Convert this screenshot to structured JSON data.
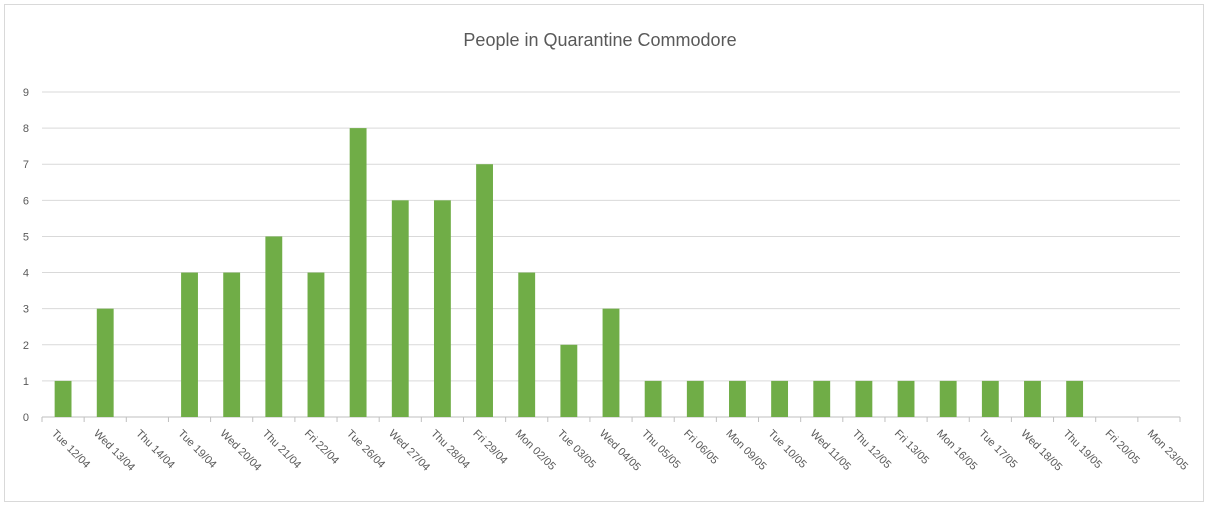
{
  "chart_data": {
    "type": "bar",
    "title": "People in Quarantine Commodore",
    "xlabel": "",
    "ylabel": "",
    "ylim": [
      0,
      9
    ],
    "yticks": [
      0,
      1,
      2,
      3,
      4,
      5,
      6,
      7,
      8,
      9
    ],
    "grid": true,
    "legend": "none",
    "bar_color": "#70ad47",
    "categories": [
      "Tue 12/04",
      "Wed 13/04",
      "Thu 14/04",
      "Tue 19/04",
      "Wed 20/04",
      "Thu 21/04",
      "Fri 22/04",
      "Tue 26/04",
      "Wed 27/04",
      "Thu 28/04",
      "Fri 29/04",
      "Mon 02/05",
      "Tue 03/05",
      "Wed 04/05",
      "Thu 05/05",
      "Fri 06/05",
      "Mon 09/05",
      "Tue 10/05",
      "Wed 11/05",
      "Thu 12/05",
      "Fri 13/05",
      "Mon 16/05",
      "Tue 17/05",
      "Wed 18/05",
      "Thu 19/05",
      "Fri 20/05",
      "Mon 23/05"
    ],
    "values": [
      1,
      3,
      0,
      4,
      4,
      5,
      4,
      8,
      6,
      6,
      7,
      4,
      2,
      3,
      1,
      1,
      1,
      1,
      1,
      1,
      1,
      1,
      1,
      1,
      1,
      0,
      0
    ]
  }
}
